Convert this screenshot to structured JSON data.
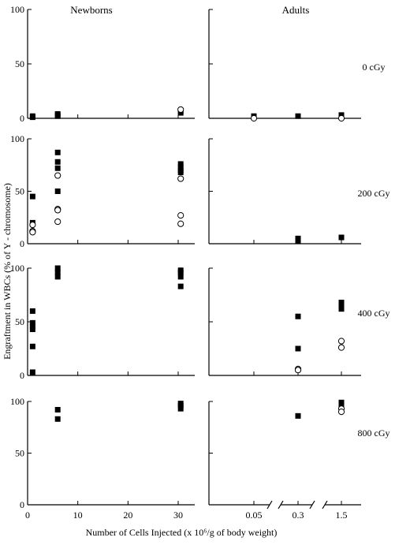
{
  "figure": {
    "columns": [
      "Newborns",
      "Adults"
    ],
    "doses": [
      "0 cGy",
      "200 cGy",
      "400 cGy",
      "800 cGy"
    ],
    "ylabel": "Engraftment in WBCs (% of Y - chromosome)",
    "xlabel": "Number of Cells Injected (x 10⁶/g of body weight)"
  },
  "chart_data": [
    {
      "type": "scatter",
      "panel": "newborns-0cGy",
      "xlim": [
        0,
        30
      ],
      "ylim": [
        0,
        100
      ],
      "xticks": [
        "0",
        "10",
        "20",
        "30"
      ],
      "yticks": [
        "0",
        "50",
        "100"
      ],
      "series": [
        {
          "marker": "filled-square",
          "points": [
            [
              1,
              1
            ],
            [
              1,
              2
            ],
            [
              6,
              2
            ],
            [
              6,
              3
            ],
            [
              6,
              4
            ],
            [
              30.5,
              5
            ],
            [
              30.5,
              7
            ]
          ]
        },
        {
          "marker": "open-circle",
          "points": [
            [
              30.5,
              8
            ]
          ]
        }
      ]
    },
    {
      "type": "scatter",
      "panel": "adults-0cGy",
      "xcategories": [
        "0.05",
        "0.3",
        "1.5"
      ],
      "ylim": [
        0,
        100
      ],
      "series": [
        {
          "marker": "filled-square",
          "points": [
            [
              "0.05",
              2
            ],
            [
              "0.3",
              2
            ],
            [
              "1.5",
              3
            ]
          ]
        },
        {
          "marker": "open-circle",
          "points": [
            [
              "0.05",
              0
            ],
            [
              "1.5",
              0
            ]
          ]
        }
      ]
    },
    {
      "type": "scatter",
      "panel": "newborns-200cGy",
      "xlim": [
        0,
        30
      ],
      "ylim": [
        0,
        100
      ],
      "xticks": [
        "0",
        "10",
        "20",
        "30"
      ],
      "yticks": [
        "0",
        "50",
        "100"
      ],
      "series": [
        {
          "marker": "filled-square",
          "points": [
            [
              1,
              45
            ],
            [
              1,
              20
            ],
            [
              6,
              87
            ],
            [
              6,
              78
            ],
            [
              6,
              72
            ],
            [
              6,
              50
            ],
            [
              30.5,
              76
            ],
            [
              30.5,
              73
            ],
            [
              30.5,
              70
            ],
            [
              30.5,
              68
            ]
          ]
        },
        {
          "marker": "open-circle",
          "points": [
            [
              1,
              18
            ],
            [
              1,
              12
            ],
            [
              1,
              11
            ],
            [
              6,
              65
            ],
            [
              6,
              33
            ],
            [
              6,
              32
            ],
            [
              6,
              21
            ],
            [
              30.5,
              62
            ],
            [
              30.5,
              27
            ],
            [
              30.5,
              19
            ]
          ]
        }
      ]
    },
    {
      "type": "scatter",
      "panel": "adults-200cGy",
      "xcategories": [
        "0.05",
        "0.3",
        "1.5"
      ],
      "ylim": [
        0,
        100
      ],
      "series": [
        {
          "marker": "filled-square",
          "points": [
            [
              "0.3",
              5
            ],
            [
              "0.3",
              3
            ],
            [
              "1.5",
              6
            ]
          ]
        },
        {
          "marker": "open-circle",
          "points": []
        }
      ]
    },
    {
      "type": "scatter",
      "panel": "newborns-400cGy",
      "xlim": [
        0,
        30
      ],
      "ylim": [
        0,
        100
      ],
      "xticks": [
        "0",
        "10",
        "20",
        "30"
      ],
      "yticks": [
        "0",
        "50",
        "100"
      ],
      "series": [
        {
          "marker": "filled-square",
          "points": [
            [
              1,
              60
            ],
            [
              1,
              49
            ],
            [
              1,
              46
            ],
            [
              1,
              43
            ],
            [
              1,
              27
            ],
            [
              1,
              3
            ],
            [
              6,
              100
            ],
            [
              6,
              96
            ],
            [
              6,
              92
            ],
            [
              30.5,
              98
            ],
            [
              30.5,
              96
            ],
            [
              30.5,
              92
            ],
            [
              30.5,
              83
            ]
          ]
        },
        {
          "marker": "open-circle",
          "points": []
        }
      ]
    },
    {
      "type": "scatter",
      "panel": "adults-400cGy",
      "xcategories": [
        "0.05",
        "0.3",
        "1.5"
      ],
      "ylim": [
        0,
        100
      ],
      "series": [
        {
          "marker": "filled-square",
          "points": [
            [
              "0.3",
              55
            ],
            [
              "0.3",
              25
            ],
            [
              "1.5",
              68
            ],
            [
              "1.5",
              65
            ],
            [
              "1.5",
              62
            ]
          ]
        },
        {
          "marker": "open-circle",
          "points": [
            [
              "0.3",
              6
            ],
            [
              "0.3",
              5
            ],
            [
              "1.5",
              32
            ],
            [
              "1.5",
              26
            ]
          ]
        }
      ]
    },
    {
      "type": "scatter",
      "panel": "newborns-800cGy",
      "xlim": [
        0,
        30
      ],
      "ylim": [
        0,
        100
      ],
      "xticks": [
        "0",
        "10",
        "20",
        "30"
      ],
      "yticks": [
        "0",
        "50",
        "100"
      ],
      "series": [
        {
          "marker": "filled-square",
          "points": [
            [
              6,
              92
            ],
            [
              6,
              83
            ],
            [
              30.5,
              98
            ],
            [
              30.5,
              96
            ],
            [
              30.5,
              93
            ]
          ]
        },
        {
          "marker": "open-circle",
          "points": []
        }
      ]
    },
    {
      "type": "scatter",
      "panel": "adults-800cGy",
      "xcategories": [
        "0.05",
        "0.3",
        "1.5"
      ],
      "ylim": [
        0,
        100
      ],
      "xticks": [
        "0.05",
        "0.3",
        "1.5"
      ],
      "series": [
        {
          "marker": "filled-square",
          "points": [
            [
              "0.3",
              86
            ],
            [
              "1.5",
              99
            ],
            [
              "1.5",
              97
            ]
          ]
        },
        {
          "marker": "open-circle",
          "points": [
            [
              "1.5",
              93
            ],
            [
              "1.5",
              90
            ]
          ]
        }
      ]
    }
  ]
}
